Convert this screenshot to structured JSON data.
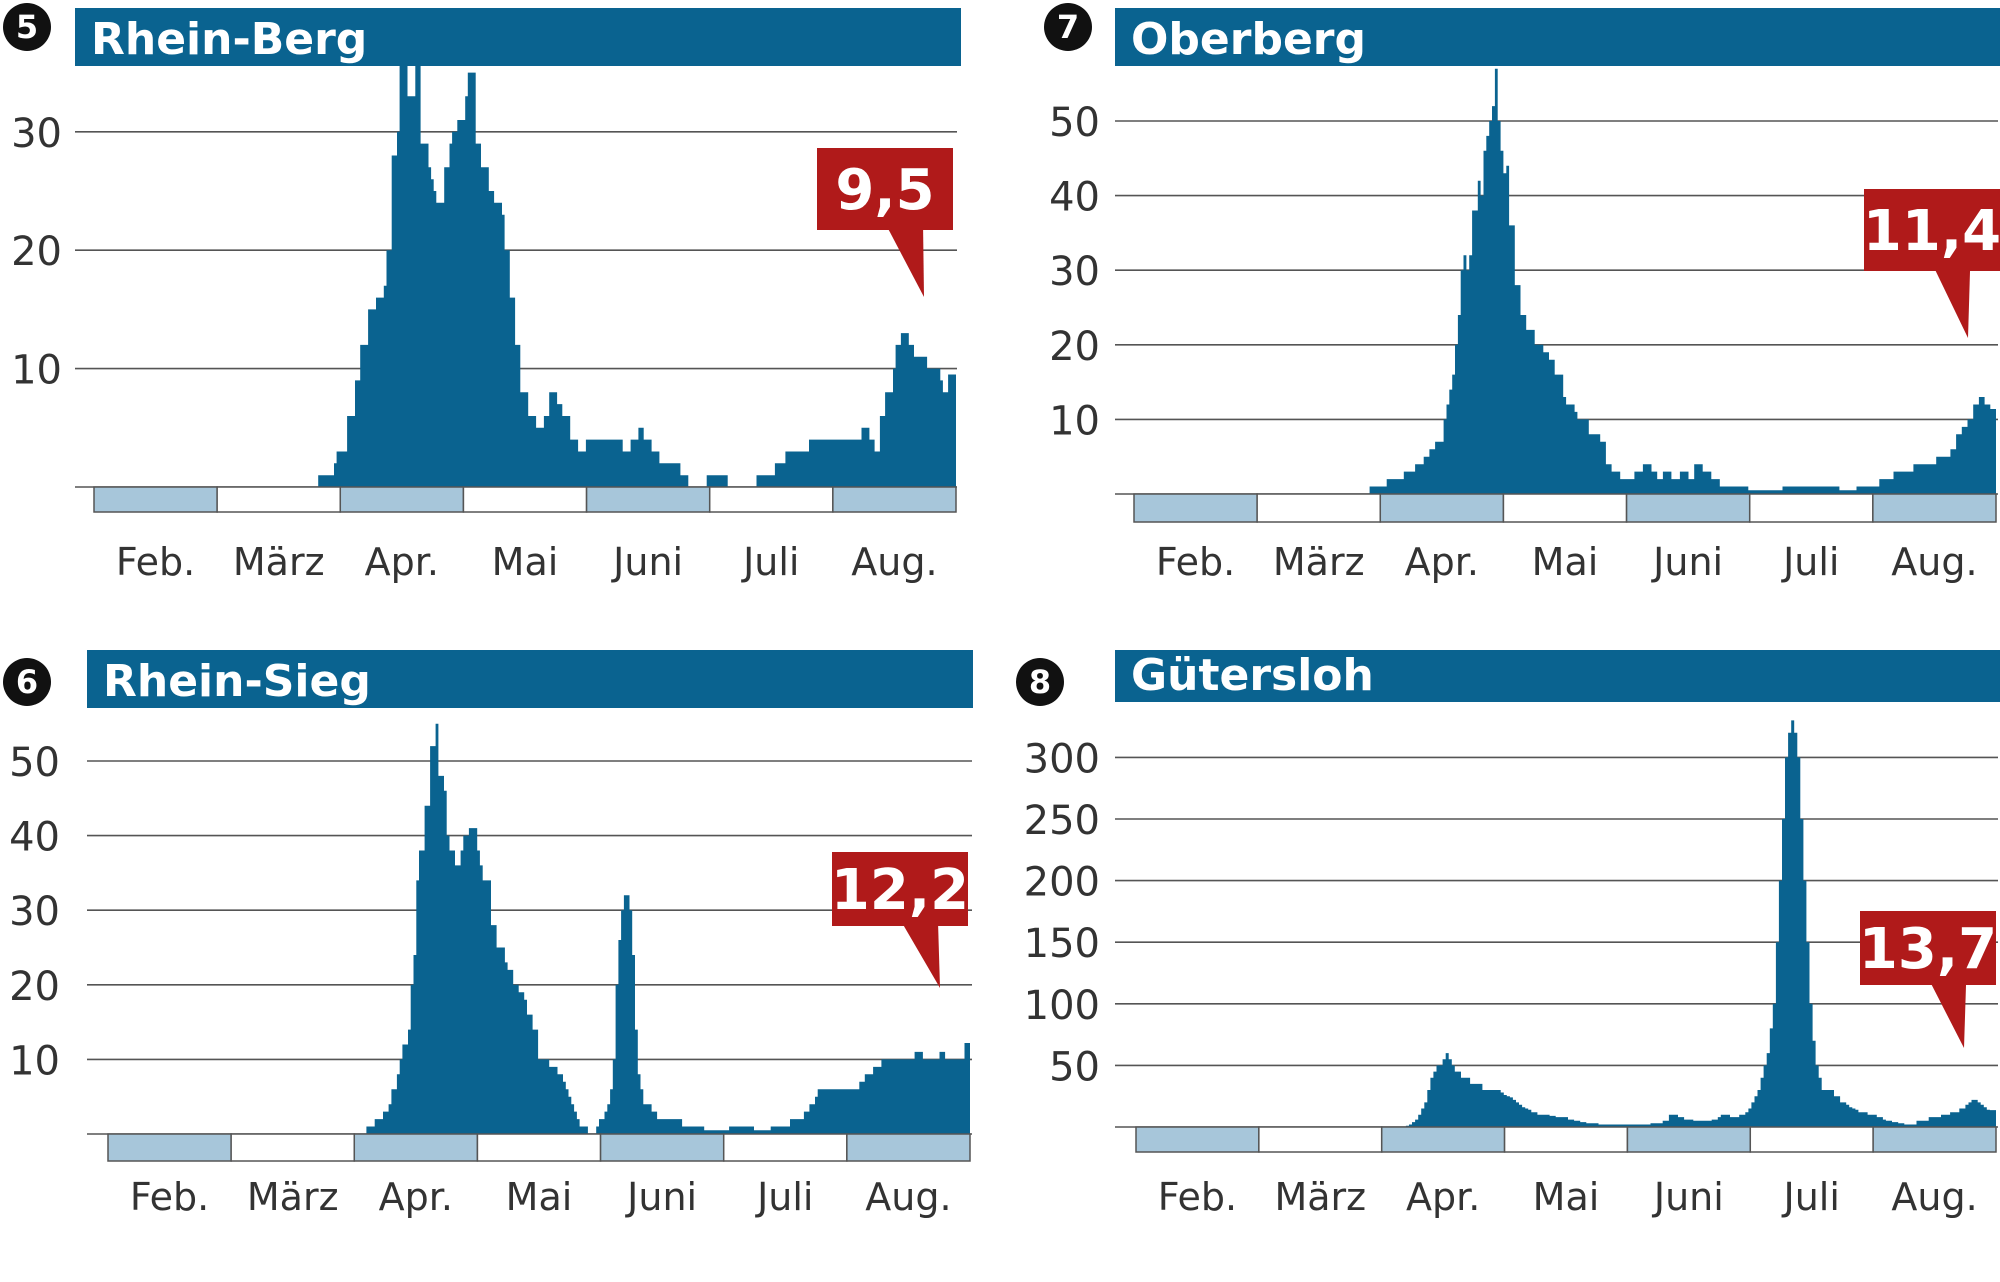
{
  "colors": {
    "bar": "#0a6390",
    "title_band": "#0a6390",
    "badge": "#b01a1a",
    "grid": "#555555",
    "strip_fill": "#a7c6da",
    "strip_border": "#555555"
  },
  "months": [
    "Feb.",
    "März",
    "Apr.",
    "Mai",
    "Juni",
    "Juli",
    "Aug."
  ],
  "chart_data": [
    {
      "type": "area",
      "number": "5",
      "title": "Rhein-Berg",
      "badge": "9,5",
      "yticks": [
        "10",
        "20",
        "30"
      ],
      "ylim": [
        0,
        37
      ],
      "series": [
        {
          "values": [
            0,
            0,
            0,
            0,
            0,
            0,
            0,
            0,
            0,
            0,
            0,
            0,
            0,
            0,
            0,
            0,
            0,
            0,
            0,
            0,
            0,
            0,
            0,
            0,
            0,
            0,
            0,
            0,
            0,
            0,
            0,
            0,
            0,
            0,
            0,
            0,
            0,
            0,
            0,
            0,
            0,
            0,
            1,
            1,
            1,
            1,
            1,
            1,
            2,
            3,
            3,
            3,
            3,
            6,
            6,
            6,
            9,
            9,
            12,
            12,
            12,
            15,
            15,
            15,
            16,
            16,
            16,
            17,
            20,
            20,
            28,
            28,
            30,
            36,
            36,
            36,
            33,
            33,
            33,
            36,
            36,
            29,
            29,
            29,
            27,
            26,
            25,
            24,
            24,
            24,
            27,
            27,
            29,
            30,
            30,
            31,
            31,
            31,
            33,
            35,
            35,
            35,
            29,
            29,
            27,
            27,
            27,
            25,
            25,
            24,
            24,
            24,
            23,
            20,
            20,
            16,
            16,
            12,
            12,
            8,
            8,
            8,
            6,
            6,
            6,
            5,
            5,
            5,
            6,
            6,
            8,
            8,
            8,
            7,
            7,
            6,
            6,
            6,
            4,
            4,
            4,
            3,
            3,
            3,
            4,
            4,
            4,
            4,
            4,
            4,
            4,
            4,
            4,
            4,
            4,
            4,
            4,
            4,
            3,
            3,
            3,
            4,
            4,
            4,
            5,
            5,
            4,
            4,
            4,
            3,
            3,
            3,
            2,
            2,
            2,
            2,
            2,
            2,
            2,
            2,
            1,
            1,
            1,
            0,
            0,
            0,
            0,
            0,
            0,
            0,
            1,
            1,
            1,
            1,
            1,
            1,
            1,
            1,
            0,
            0,
            0,
            0,
            0,
            0,
            0,
            0,
            0,
            0,
            0,
            1,
            1,
            1,
            1,
            1,
            1,
            1,
            2,
            2,
            2,
            2,
            3,
            3,
            3,
            3,
            3,
            3,
            3,
            3,
            3,
            4,
            4,
            4,
            4,
            4,
            4,
            4,
            4,
            4,
            4,
            4,
            4,
            4,
            4,
            4,
            4,
            4,
            4,
            4,
            4,
            5,
            5,
            5,
            4,
            4,
            3,
            3,
            6,
            6,
            8,
            8,
            8,
            10,
            12,
            12,
            13,
            13,
            13,
            12,
            12,
            11,
            11,
            11,
            11,
            11,
            10,
            10,
            10,
            10,
            10,
            9,
            8,
            8,
            9.5,
            9.5,
            9.5
          ]
        }
      ]
    },
    {
      "type": "area",
      "number": "7",
      "title": "Oberberg",
      "badge": "11,4",
      "yticks": [
        "10",
        "20",
        "30",
        "40",
        "50"
      ],
      "ylim": [
        0,
        57
      ],
      "series": [
        {
          "values": [
            0,
            0,
            0,
            0,
            0,
            0,
            0,
            0,
            0,
            0,
            0,
            0,
            0,
            0,
            0,
            0,
            0,
            0,
            0,
            0,
            0,
            0,
            0,
            0,
            0,
            0,
            0,
            0,
            0,
            0,
            0,
            0,
            0,
            0,
            0,
            0,
            0,
            0,
            0,
            0,
            0,
            0,
            1,
            1,
            1,
            1,
            1,
            1,
            2,
            2,
            2,
            2,
            2,
            2,
            3,
            3,
            3,
            3,
            4,
            4,
            4,
            5,
            5,
            6,
            6,
            7,
            7,
            7,
            10,
            12,
            14,
            16,
            20,
            24,
            30,
            32,
            30,
            32,
            38,
            38,
            42,
            40,
            46,
            48,
            50,
            52,
            57,
            50,
            46,
            43,
            44,
            36,
            36,
            28,
            28,
            24,
            24,
            22,
            22,
            22,
            20,
            20,
            20,
            19,
            19,
            18,
            18,
            16,
            16,
            16,
            13,
            12,
            12,
            12,
            11,
            10,
            10,
            10,
            10,
            8,
            8,
            8,
            8,
            7,
            7,
            4,
            4,
            3,
            3,
            3,
            2,
            2,
            2,
            2,
            2,
            3,
            3,
            3,
            4,
            4,
            4,
            3,
            3,
            2,
            2,
            3,
            3,
            3,
            2,
            2,
            2,
            3,
            3,
            3,
            2,
            2,
            4,
            4,
            4,
            3,
            3,
            3,
            2,
            2,
            2,
            1,
            1,
            1,
            1,
            1,
            1,
            1,
            1,
            1,
            1,
            0.5,
            0.5,
            0.5,
            0.5,
            0.5,
            0.5,
            0.5,
            0.5,
            0.5,
            0.5,
            0.5,
            0.5,
            1,
            1,
            1,
            1,
            1,
            1,
            1,
            1,
            1,
            1,
            1,
            1,
            1,
            1,
            1,
            1,
            1,
            1,
            1,
            1,
            0.5,
            0.5,
            0.5,
            0.5,
            0.5,
            0.5,
            1,
            1,
            1,
            1,
            1,
            1,
            1,
            1,
            2,
            2,
            2,
            2,
            2,
            3,
            3,
            3,
            3,
            3,
            3,
            3,
            4,
            4,
            4,
            4,
            4,
            4,
            4,
            4,
            5,
            5,
            5,
            5,
            5,
            6,
            6,
            8,
            8,
            9,
            9,
            10,
            10,
            12,
            12,
            13,
            13,
            12,
            12,
            11.4,
            11.4
          ]
        }
      ]
    },
    {
      "type": "area",
      "number": "6",
      "title": "Rhein-Sieg",
      "badge": "12,2",
      "yticks": [
        "10",
        "20",
        "30",
        "40",
        "50"
      ],
      "ylim": [
        0,
        55
      ],
      "series": [
        {
          "values": [
            0,
            0,
            0,
            0,
            0,
            0,
            0,
            0,
            0,
            0,
            0,
            0,
            0,
            0,
            0,
            0,
            0,
            0,
            0,
            0,
            0,
            0,
            0,
            0,
            0,
            0,
            0,
            0,
            0,
            0,
            0,
            0,
            0,
            0,
            0,
            0,
            0,
            0,
            0,
            0,
            0,
            0,
            0,
            0,
            0,
            0,
            0,
            0,
            0,
            0,
            1,
            1,
            1,
            2,
            2,
            2,
            3,
            3,
            4,
            6,
            6,
            8,
            10,
            12,
            12,
            14,
            20,
            24,
            34,
            38,
            38,
            44,
            44,
            52,
            52,
            55,
            48,
            48,
            46,
            40,
            38,
            38,
            36,
            36,
            38,
            40,
            40,
            41,
            41,
            41,
            38,
            36,
            34,
            34,
            34,
            28,
            28,
            25,
            25,
            25,
            23,
            22,
            22,
            20,
            20,
            19,
            19,
            18,
            16,
            16,
            14,
            14,
            10,
            10,
            10,
            10,
            9,
            9,
            9,
            8,
            8,
            7,
            6,
            5,
            4,
            3,
            2,
            1,
            1,
            1,
            0,
            0,
            0,
            1,
            2,
            2,
            3,
            4,
            6,
            10,
            20,
            26,
            30,
            32,
            32,
            30,
            24,
            14,
            8,
            6,
            4,
            4,
            4,
            3,
            3,
            2,
            2,
            2,
            2,
            2,
            2,
            2,
            2,
            2,
            1,
            1,
            1,
            1,
            1,
            1,
            1,
            1,
            0.5,
            0.5,
            0.5,
            0.5,
            0.5,
            0.5,
            0.5,
            0.5,
            0.5,
            1,
            1,
            1,
            1,
            1,
            1,
            1,
            1,
            1,
            0.5,
            0.5,
            0.5,
            0.5,
            0.5,
            0.5,
            1,
            1,
            1,
            1,
            1,
            1,
            1,
            2,
            2,
            2,
            2,
            2,
            3,
            3,
            4,
            4,
            5,
            6,
            6,
            6,
            6,
            6,
            6,
            6,
            6,
            6,
            6,
            6,
            6,
            6,
            6,
            6,
            7,
            7,
            8,
            8,
            8,
            9,
            9,
            9,
            10,
            10,
            10,
            10,
            10,
            10,
            10,
            10,
            10,
            10,
            10,
            10,
            11,
            11,
            11,
            10,
            10,
            10,
            10,
            10,
            10,
            11,
            11,
            10,
            10,
            10,
            10,
            10,
            10,
            10,
            12.2,
            12.2
          ]
        }
      ]
    },
    {
      "type": "area",
      "number": "8",
      "title": "Gütersloh",
      "badge": "13,7",
      "yticks": [
        "50",
        "100",
        "150",
        "200",
        "250",
        "300"
      ],
      "ylim": [
        0,
        335
      ],
      "series": [
        {
          "values": [
            0,
            0,
            0,
            0,
            0,
            0,
            0,
            0,
            0,
            0,
            0,
            0,
            0,
            0,
            0,
            0,
            0,
            0,
            0,
            0,
            0,
            0,
            0,
            0,
            0,
            0,
            0,
            0,
            0,
            0,
            0,
            0,
            0,
            0,
            0,
            0,
            0,
            0,
            0,
            0,
            0,
            0,
            0,
            0,
            0,
            0,
            0,
            0,
            0,
            0,
            0,
            1,
            2,
            4,
            6,
            10,
            15,
            20,
            30,
            40,
            45,
            50,
            50,
            55,
            60,
            55,
            50,
            45,
            45,
            40,
            40,
            40,
            35,
            35,
            35,
            35,
            30,
            30,
            30,
            30,
            30,
            30,
            28,
            26,
            25,
            24,
            22,
            20,
            18,
            16,
            15,
            14,
            12,
            12,
            10,
            10,
            10,
            10,
            9,
            9,
            8,
            8,
            8,
            8,
            6,
            6,
            5,
            5,
            4,
            4,
            3,
            3,
            3,
            3,
            2,
            2,
            2,
            2,
            2,
            2,
            2,
            2,
            2,
            2,
            2,
            2,
            2,
            2,
            2,
            2,
            2,
            3,
            3,
            3,
            3,
            5,
            5,
            10,
            10,
            10,
            8,
            8,
            6,
            6,
            6,
            5,
            5,
            5,
            5,
            5,
            5,
            6,
            6,
            8,
            10,
            10,
            10,
            8,
            8,
            8,
            10,
            10,
            12,
            15,
            20,
            25,
            30,
            40,
            50,
            60,
            80,
            100,
            150,
            200,
            250,
            300,
            320,
            330,
            320,
            300,
            250,
            200,
            150,
            100,
            70,
            50,
            40,
            30,
            30,
            30,
            30,
            25,
            25,
            20,
            20,
            18,
            16,
            15,
            14,
            12,
            12,
            12,
            10,
            10,
            10,
            8,
            8,
            6,
            5,
            5,
            4,
            4,
            3,
            3,
            2,
            2,
            2,
            2,
            5,
            5,
            5,
            5,
            8,
            8,
            8,
            8,
            10,
            10,
            10,
            12,
            12,
            12,
            15,
            15,
            18,
            20,
            22,
            22,
            20,
            18,
            16,
            14,
            13.7,
            13.7
          ]
        }
      ]
    }
  ]
}
